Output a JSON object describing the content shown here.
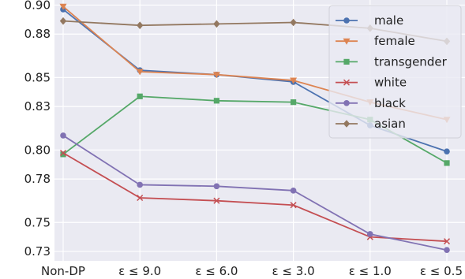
{
  "chart_data": {
    "type": "line",
    "title": "",
    "xlabel": "",
    "ylabel": "",
    "categories": [
      "Non-DP",
      "ε ≤ 9.0",
      "ε ≤ 6.0",
      "ε ≤ 3.0",
      "ε ≤ 1.0",
      "ε ≤ 0.5"
    ],
    "ylim": [
      0.7235,
      0.9035
    ],
    "yticks": [
      0.73,
      0.75,
      0.78,
      0.8,
      0.83,
      0.85,
      0.88,
      0.9
    ],
    "ytick_labels": [
      "0.73",
      "0.75",
      "0.78",
      "0.80",
      "0.83",
      "0.85",
      "0.88",
      "0.90"
    ],
    "grid": true,
    "legend_position": "top-right",
    "series": [
      {
        "name": "male",
        "color": "#4c72b0",
        "marker": "circle",
        "values": [
          0.897,
          0.855,
          0.852,
          0.847,
          0.817,
          0.799
        ]
      },
      {
        "name": "female",
        "color": "#dd8452",
        "marker": "triangle-down",
        "values": [
          0.899,
          0.854,
          0.852,
          0.848,
          0.833,
          0.821
        ]
      },
      {
        "name": "transgender",
        "color": "#55a868",
        "marker": "square",
        "values": [
          0.797,
          0.837,
          0.834,
          0.833,
          0.821,
          0.791
        ]
      },
      {
        "name": "white",
        "color": "#c44e52",
        "marker": "x",
        "values": [
          0.798,
          0.767,
          0.765,
          0.762,
          0.74,
          0.737
        ]
      },
      {
        "name": "black",
        "color": "#8172b3",
        "marker": "circle",
        "values": [
          0.81,
          0.776,
          0.775,
          0.772,
          0.742,
          0.731
        ]
      },
      {
        "name": "asian",
        "color": "#937860",
        "marker": "diamond",
        "values": [
          0.889,
          0.886,
          0.887,
          0.888,
          0.884,
          0.875
        ]
      }
    ]
  }
}
